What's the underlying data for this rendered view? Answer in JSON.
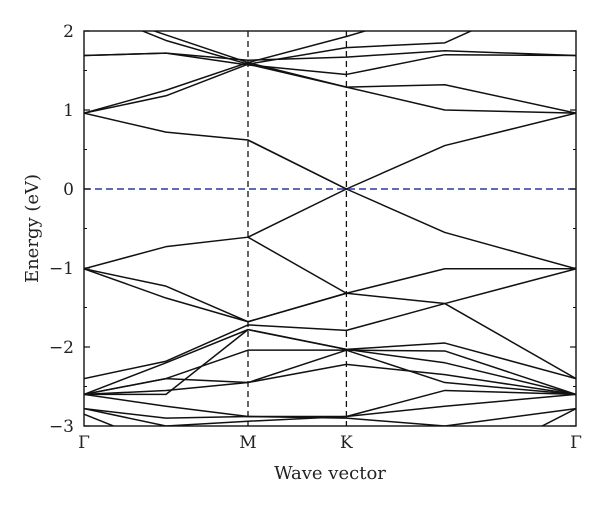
{
  "chart_data": {
    "type": "line",
    "xlabel": "Wave vector",
    "ylabel": "Energy (eV)",
    "xlim": [
      0,
      3
    ],
    "ylim": [
      -3,
      2
    ],
    "k_points": [
      {
        "label": "Γ",
        "x": 0
      },
      {
        "label": "M",
        "x": 1
      },
      {
        "label": "K",
        "x": 1.6
      },
      {
        "label": "Γ",
        "x": 3
      }
    ],
    "yticks": [
      -3,
      -2,
      -1,
      0,
      1,
      2
    ],
    "fermi_level": {
      "y": 0,
      "color": "#2b3aa0",
      "style": "dashed"
    },
    "line_color": "#111111",
    "bands": [
      {
        "x": [
          0,
          0.5,
          1,
          1.6,
          2.2,
          3
        ],
        "y": [
          0.96,
          0.72,
          0.62,
          0.0,
          0.55,
          0.96
        ]
      },
      {
        "x": [
          0,
          0.5,
          1,
          1.6,
          2.2,
          3
        ],
        "y": [
          0.96,
          1.18,
          1.58,
          1.29,
          1.0,
          0.96
        ]
      },
      {
        "x": [
          0,
          0.5,
          1,
          1.6,
          2.2,
          3
        ],
        "y": [
          0.96,
          1.25,
          1.6,
          1.29,
          1.32,
          0.96
        ]
      },
      {
        "x": [
          0,
          0.5,
          1,
          1.6,
          2.2,
          3
        ],
        "y": [
          1.69,
          1.72,
          1.57,
          1.45,
          1.7,
          1.69
        ]
      },
      {
        "x": [
          0,
          0.5,
          1,
          1.6,
          2.2,
          3
        ],
        "y": [
          1.69,
          1.72,
          1.63,
          1.67,
          1.75,
          1.69
        ]
      },
      {
        "x": [
          0,
          0.5,
          1,
          1.6,
          2.2,
          3
        ],
        "y": [
          2.3,
          1.95,
          1.6,
          1.93,
          2.3,
          2.6
        ]
      },
      {
        "x": [
          0,
          0.5,
          1,
          1.6,
          2.2,
          3
        ],
        "y": [
          2.3,
          1.88,
          1.58,
          1.79,
          1.85,
          2.6
        ]
      },
      {
        "x": [
          1,
          1.6
        ],
        "y": [
          0.62,
          0.0
        ]
      },
      {
        "x": [
          0,
          0.5,
          1,
          1.6,
          2.2,
          3
        ],
        "y": [
          -1.01,
          -0.73,
          -0.61,
          0.0,
          -0.55,
          -1.01
        ]
      },
      {
        "x": [
          0,
          0.5,
          1,
          1.6,
          2.2,
          3
        ],
        "y": [
          -1.01,
          -1.23,
          -1.68,
          -1.32,
          -1.01,
          -1.01
        ]
      },
      {
        "x": [
          0,
          0.5,
          1,
          1.6,
          2.2,
          3
        ],
        "y": [
          -1.01,
          -1.38,
          -1.68,
          -1.32,
          -1.45,
          -1.01
        ]
      },
      {
        "x": [
          1,
          1.6
        ],
        "y": [
          -0.61,
          -1.32
        ]
      },
      {
        "x": [
          0,
          0.5,
          1,
          1.6,
          2.2,
          3
        ],
        "y": [
          -2.4,
          -2.18,
          -1.72,
          -1.79,
          -1.45,
          -2.4
        ]
      },
      {
        "x": [
          0,
          0.5,
          1,
          1.6,
          2.2,
          3
        ],
        "y": [
          -2.6,
          -2.2,
          -1.78,
          -2.03,
          -1.95,
          -2.4
        ]
      },
      {
        "x": [
          0,
          0.5,
          1,
          1.6,
          2.2,
          3
        ],
        "y": [
          -2.6,
          -2.4,
          -2.04,
          -2.04,
          -2.05,
          -2.6
        ]
      },
      {
        "x": [
          0,
          0.5,
          1,
          1.6,
          2.2,
          3
        ],
        "y": [
          -2.6,
          -2.4,
          -2.45,
          -2.22,
          -2.35,
          -2.6
        ]
      },
      {
        "x": [
          0,
          0.5,
          1,
          1.6,
          2.2,
          3
        ],
        "y": [
          -2.6,
          -2.55,
          -2.45,
          -2.04,
          -2.45,
          -2.6
        ]
      },
      {
        "x": [
          0,
          0.5,
          1,
          1.6,
          2.2,
          3
        ],
        "y": [
          -2.6,
          -2.6,
          -1.78,
          -2.03,
          -2.2,
          -2.6
        ]
      },
      {
        "x": [
          0,
          0.5,
          1,
          1.6,
          2.2,
          3
        ],
        "y": [
          -2.6,
          -2.75,
          -2.88,
          -2.88,
          -2.55,
          -2.6
        ]
      },
      {
        "x": [
          0,
          0.5,
          1,
          1.6,
          2.2,
          3
        ],
        "y": [
          -2.78,
          -3.0,
          -2.94,
          -2.88,
          -2.75,
          -2.6
        ]
      },
      {
        "x": [
          0,
          0.5,
          1,
          1.6,
          2.2,
          3
        ],
        "y": [
          -2.78,
          -2.9,
          -2.88,
          -2.9,
          -3.0,
          -2.78
        ]
      },
      {
        "x": [
          0,
          0.3
        ],
        "y": [
          -2.85,
          -3.1
        ]
      },
      {
        "x": [
          2.7,
          3
        ],
        "y": [
          -3.1,
          -2.78
        ]
      }
    ]
  }
}
